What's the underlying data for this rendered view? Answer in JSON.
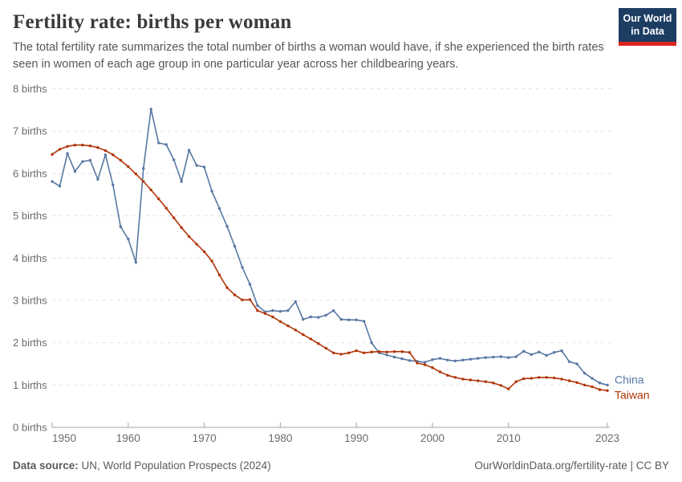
{
  "header": {
    "title": "Fertility rate: births per woman",
    "subtitle": "The total fertility rate summarizes the total number of births a woman would have, if she experienced the birth rates seen in women of each age group in one particular year across her childbearing years.",
    "logo": {
      "line1": "Our World",
      "line2": "in Data"
    }
  },
  "colors": {
    "logo_bg": "#1d3d63",
    "logo_accent": "#dc2420",
    "china_line": "#5878a3",
    "taiwan_line": "#b13507",
    "gridline": "#e2e2e2",
    "axis": "#a3a3a3",
    "tick_label": "#6b6b6b",
    "title_text": "#3a3a3a",
    "subtitle_text": "#565656",
    "footer_text": "#5b5b5b"
  },
  "footer": {
    "source_label": "Data source:",
    "source_text": " UN, World Population Prospects (2024)",
    "credit": "OurWorldinData.org/fertility-rate | CC BY"
  },
  "chart_data": {
    "type": "line",
    "title": "Fertility rate: births per woman",
    "xlabel": "",
    "ylabel": "births",
    "xlim": [
      1950,
      2023
    ],
    "ylim": [
      0,
      8
    ],
    "grid": "horizontal-dashed",
    "legend_position": "end-of-line-labels",
    "x_ticks": [
      1950,
      1960,
      1970,
      1980,
      1990,
      2000,
      2010,
      2023
    ],
    "y_ticks": [
      0,
      1,
      2,
      3,
      4,
      5,
      6,
      7,
      8
    ],
    "y_tick_suffix": " births",
    "x": [
      1950,
      1951,
      1952,
      1953,
      1954,
      1955,
      1956,
      1957,
      1958,
      1959,
      1960,
      1961,
      1962,
      1963,
      1964,
      1965,
      1966,
      1967,
      1968,
      1969,
      1970,
      1971,
      1972,
      1973,
      1974,
      1975,
      1976,
      1977,
      1978,
      1979,
      1980,
      1981,
      1982,
      1983,
      1984,
      1985,
      1986,
      1987,
      1988,
      1989,
      1990,
      1991,
      1992,
      1993,
      1994,
      1995,
      1996,
      1997,
      1998,
      1999,
      2000,
      2001,
      2002,
      2003,
      2004,
      2005,
      2006,
      2007,
      2008,
      2009,
      2010,
      2011,
      2012,
      2013,
      2014,
      2015,
      2016,
      2017,
      2018,
      2019,
      2020,
      2021,
      2022,
      2023
    ],
    "series": [
      {
        "name": "China",
        "color": "#5878a3",
        "values": [
          5.81,
          5.7,
          6.47,
          6.05,
          6.28,
          6.31,
          5.86,
          6.44,
          5.73,
          4.74,
          4.45,
          3.9,
          6.12,
          7.52,
          6.72,
          6.68,
          6.32,
          5.81,
          6.55,
          6.19,
          6.15,
          5.58,
          5.17,
          4.75,
          4.28,
          3.78,
          3.38,
          2.88,
          2.73,
          2.76,
          2.74,
          2.76,
          2.97,
          2.55,
          2.61,
          2.6,
          2.65,
          2.76,
          2.55,
          2.54,
          2.54,
          2.51,
          2.0,
          1.76,
          1.71,
          1.66,
          1.62,
          1.58,
          1.56,
          1.54,
          1.6,
          1.63,
          1.59,
          1.57,
          1.59,
          1.61,
          1.63,
          1.65,
          1.66,
          1.67,
          1.65,
          1.67,
          1.8,
          1.72,
          1.78,
          1.7,
          1.77,
          1.81,
          1.55,
          1.5,
          1.28,
          1.16,
          1.05,
          1.0
        ]
      },
      {
        "name": "Taiwan",
        "color": "#b13507",
        "values": [
          6.45,
          6.57,
          6.64,
          6.67,
          6.67,
          6.65,
          6.61,
          6.54,
          6.44,
          6.31,
          6.16,
          5.99,
          5.81,
          5.61,
          5.4,
          5.18,
          4.95,
          4.72,
          4.51,
          4.33,
          4.15,
          3.93,
          3.6,
          3.3,
          3.13,
          3.01,
          3.02,
          2.76,
          2.69,
          2.61,
          2.5,
          2.4,
          2.3,
          2.19,
          2.09,
          1.98,
          1.87,
          1.76,
          1.73,
          1.76,
          1.81,
          1.76,
          1.78,
          1.79,
          1.78,
          1.79,
          1.79,
          1.77,
          1.52,
          1.48,
          1.41,
          1.31,
          1.23,
          1.18,
          1.14,
          1.12,
          1.1,
          1.08,
          1.05,
          0.99,
          0.91,
          1.08,
          1.15,
          1.16,
          1.18,
          1.18,
          1.17,
          1.14,
          1.1,
          1.06,
          1.0,
          0.96,
          0.89,
          0.87
        ]
      }
    ]
  }
}
